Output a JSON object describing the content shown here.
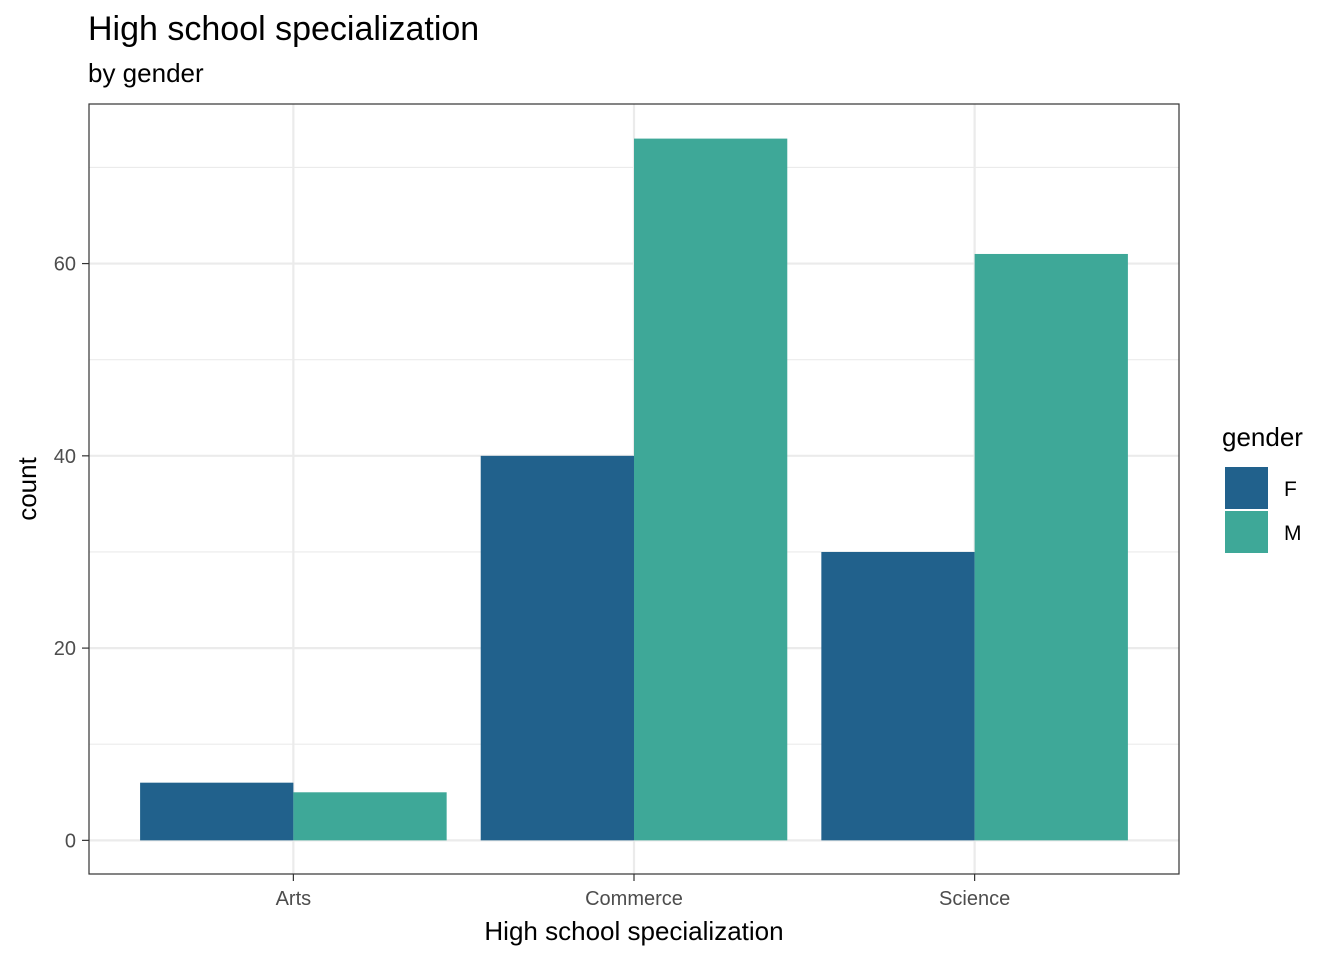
{
  "chart_data": {
    "type": "bar",
    "title": "High school specialization",
    "subtitle": "by gender",
    "xlabel": "High school specialization",
    "ylabel": "count",
    "categories": [
      "Arts",
      "Commerce",
      "Science"
    ],
    "series": [
      {
        "name": "F",
        "values": [
          6,
          40,
          30
        ],
        "color": "#21618c"
      },
      {
        "name": "M",
        "values": [
          5,
          73,
          61
        ],
        "color": "#3ea898"
      }
    ],
    "ylim": [
      -3.5,
      76.6
    ],
    "yticks": [
      0,
      20,
      40,
      60
    ],
    "ytick_labels": [
      "0",
      "20",
      "40",
      "60"
    ],
    "legend": {
      "title": "gender",
      "position": "right"
    },
    "grid": true
  }
}
